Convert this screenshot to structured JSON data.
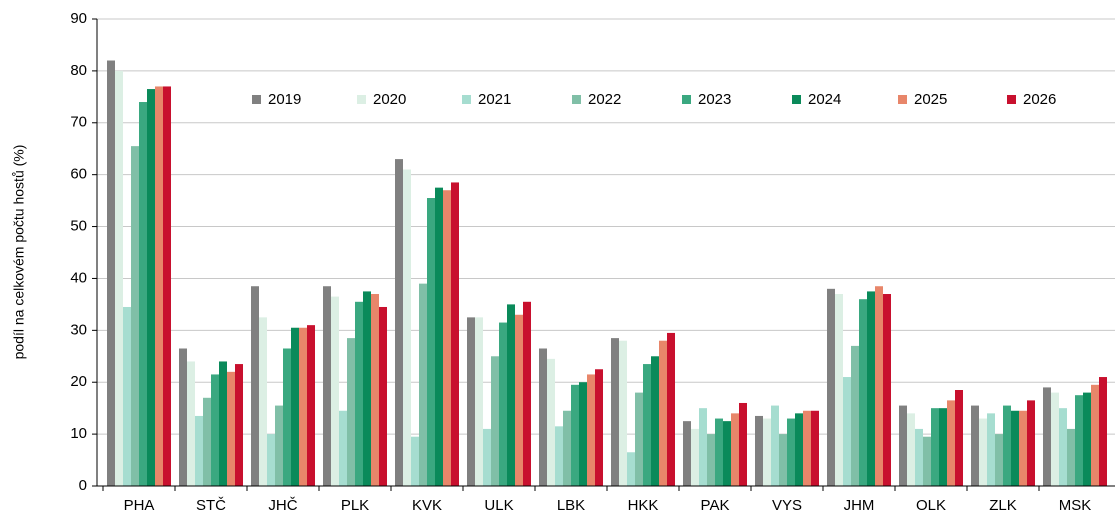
{
  "chart_data": {
    "type": "bar",
    "y_label": "podíl na celkovém počtu hostů (%)",
    "categories": [
      "PHA",
      "STČ",
      "JHČ",
      "PLK",
      "KVK",
      "ULK",
      "LBK",
      "HKK",
      "PAK",
      "VYS",
      "JHM",
      "OLK",
      "ZLK",
      "MSK"
    ],
    "series": [
      {
        "name": "2019",
        "color": "#808080",
        "values": [
          82,
          26.5,
          38.5,
          38.5,
          63,
          32.5,
          26.5,
          28.5,
          12.5,
          13.5,
          38,
          15.5,
          15.5,
          19
        ]
      },
      {
        "name": "2020",
        "color": "#dcefe4",
        "values": [
          80,
          24,
          32.5,
          36.5,
          61,
          32.5,
          24.5,
          28,
          11,
          13,
          37,
          14,
          13,
          18
        ]
      },
      {
        "name": "2021",
        "color": "#a6ddd0",
        "values": [
          34.5,
          13.5,
          10,
          14.5,
          9.5,
          11,
          11.5,
          6.5,
          15,
          15.5,
          21,
          11,
          14,
          15
        ]
      },
      {
        "name": "2022",
        "color": "#80bfa7",
        "values": [
          65.5,
          17,
          15.5,
          28.5,
          39,
          25,
          14.5,
          18,
          10,
          10,
          27,
          9.5,
          10,
          11
        ]
      },
      {
        "name": "2023",
        "color": "#3aa880",
        "values": [
          74,
          21.5,
          26.5,
          35.5,
          55.5,
          31.5,
          19.5,
          23.5,
          13,
          13,
          36,
          15,
          15.5,
          17.5
        ]
      },
      {
        "name": "2024",
        "color": "#0a8a5a",
        "values": [
          76.5,
          24,
          30.5,
          37.5,
          57.5,
          35,
          20,
          25,
          12.5,
          14,
          37.5,
          15,
          14.5,
          18
        ]
      },
      {
        "name": "2025",
        "color": "#e8866a",
        "values": [
          77,
          22,
          30.5,
          37,
          57,
          33,
          21.5,
          28,
          14,
          14.5,
          38.5,
          16.5,
          14.5,
          19.5
        ]
      },
      {
        "name": "2026",
        "color": "#c8102e",
        "values": [
          77,
          23.5,
          31,
          34.5,
          58.5,
          35.5,
          22.5,
          29.5,
          16,
          14.5,
          37,
          18.5,
          16.5,
          21
        ]
      }
    ],
    "ylim": [
      0,
      90
    ],
    "yticks": [
      0,
      10,
      20,
      30,
      40,
      50,
      60,
      70,
      80,
      90
    ],
    "grid": true,
    "legend": "top"
  }
}
